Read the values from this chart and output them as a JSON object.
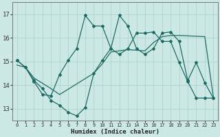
{
  "xlabel": "Humidex (Indice chaleur)",
  "bg_color": "#cce8e5",
  "line_color": "#1e6b63",
  "grid_color": "#aed4d0",
  "xlim": [
    -0.5,
    23.5
  ],
  "ylim": [
    12.5,
    17.5
  ],
  "yticks": [
    13,
    14,
    15,
    16,
    17
  ],
  "xticks": [
    0,
    1,
    2,
    3,
    4,
    5,
    6,
    7,
    8,
    9,
    10,
    11,
    12,
    13,
    14,
    15,
    16,
    17,
    18,
    19,
    20,
    21,
    22,
    23
  ],
  "line1_x": [
    0,
    1,
    2,
    3,
    4,
    5,
    6,
    7,
    8,
    9,
    10,
    11,
    12,
    13,
    14,
    15,
    16,
    17,
    18,
    19,
    20,
    21,
    22,
    23
  ],
  "line1_y": [
    15.05,
    14.75,
    14.15,
    13.6,
    13.55,
    14.45,
    15.05,
    15.55,
    16.95,
    16.5,
    16.5,
    15.55,
    15.3,
    15.55,
    16.2,
    16.2,
    16.25,
    15.85,
    15.85,
    14.95,
    14.15,
    13.45,
    13.45,
    13.45
  ],
  "line2_x": [
    0,
    1,
    2,
    3,
    4,
    5,
    6,
    7,
    8,
    9,
    10,
    11,
    12,
    13,
    14,
    15,
    16,
    17,
    18,
    19,
    20,
    21,
    22,
    23
  ],
  "line2_y": [
    15.05,
    14.75,
    14.2,
    13.85,
    13.35,
    13.15,
    12.85,
    12.7,
    13.05,
    14.5,
    15.05,
    15.55,
    16.95,
    16.5,
    15.55,
    15.3,
    15.55,
    16.2,
    16.25,
    15.85,
    14.2,
    14.95,
    14.1,
    13.45
  ],
  "line3_x": [
    0,
    1,
    2,
    4,
    5,
    9,
    10,
    11,
    13,
    15,
    16,
    17,
    18,
    19,
    22,
    23
  ],
  "line3_y": [
    14.85,
    14.75,
    14.3,
    13.85,
    13.6,
    14.5,
    14.9,
    15.4,
    15.5,
    15.45,
    15.8,
    16.05,
    16.1,
    16.1,
    16.05,
    13.5
  ]
}
